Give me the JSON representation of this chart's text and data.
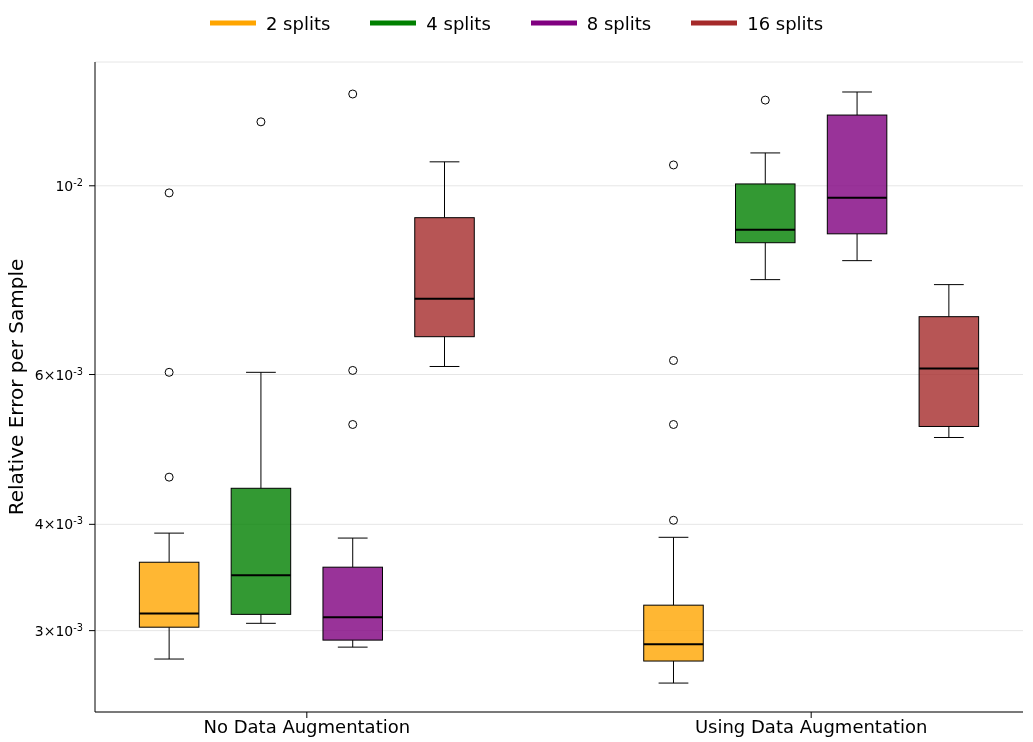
{
  "chart_data": {
    "type": "box",
    "ylabel": "Relative Error per Sample",
    "categories": [
      "No Data Augmentation",
      "Using Data Augmentation"
    ],
    "log": true,
    "grid": "y",
    "legend": "top",
    "ylim": [
      0.002407,
      0.01398
    ],
    "yticks": [
      {
        "value": 0.003,
        "label": "3×10$^{-3}$"
      },
      {
        "value": 0.004,
        "label": "4×10$^{-3}$"
      },
      {
        "value": 0.006,
        "label": "6×10$^{-3}$"
      },
      {
        "value": 0.01,
        "label": "10$^{-2}$"
      }
    ],
    "series": [
      {
        "name": "2 splits",
        "color": "#ffa500",
        "boxes": [
          {
            "low": 0.002778,
            "q1": 0.003028,
            "median": 0.003143,
            "q3": 0.00361,
            "high": 0.003906,
            "outliers": [
              0.00981,
              0.006036,
              0.004545
            ]
          },
          {
            "low": 0.002603,
            "q1": 0.002763,
            "median": 0.002892,
            "q3": 0.003214,
            "high": 0.003862,
            "outliers": [
              0.01058,
              0.006232,
              0.005241,
              0.004044
            ]
          }
        ]
      },
      {
        "name": "4 splits",
        "color": "#008000",
        "boxes": [
          {
            "low": 0.00306,
            "q1": 0.003135,
            "median": 0.003485,
            "q3": 0.00441,
            "high": 0.006036,
            "outliers": [
              0.01189
            ]
          },
          {
            "low": 0.007757,
            "q1": 0.008572,
            "median": 0.008879,
            "q3": 0.01005,
            "high": 0.01093,
            "outliers": [
              0.01261
            ]
          }
        ]
      },
      {
        "name": "8 splits",
        "color": "#800080",
        "boxes": [
          {
            "low": 0.002869,
            "q1": 0.002924,
            "median": 0.003111,
            "q3": 0.003562,
            "high": 0.003854,
            "outliers": [
              0.01282,
              0.006067,
              0.005241
            ]
          },
          {
            "low": 0.008166,
            "q1": 0.008781,
            "median": 0.009681,
            "q3": 0.01211,
            "high": 0.01289
          }
        ]
      },
      {
        "name": "16 splits",
        "color": "#a52a2a",
        "boxes": [
          {
            "low": 0.006132,
            "q1": 0.006647,
            "median": 0.007367,
            "q3": 0.009173,
            "high": 0.01067
          },
          {
            "low": 0.00506,
            "q1": 0.005213,
            "median": 0.0061,
            "q3": 0.007017,
            "high": 0.007653
          }
        ]
      }
    ]
  }
}
